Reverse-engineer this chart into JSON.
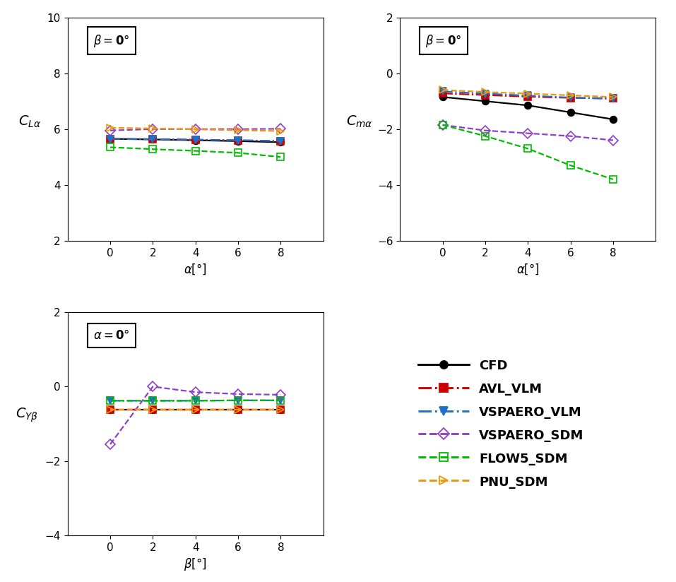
{
  "alpha_x": [
    0,
    2,
    4,
    6,
    8
  ],
  "beta_x": [
    0,
    2,
    4,
    6,
    8
  ],
  "CLa_CFD": [
    5.65,
    5.63,
    5.6,
    5.57,
    5.53
  ],
  "CLa_AVL": [
    5.65,
    5.64,
    5.62,
    5.6,
    5.57
  ],
  "CLa_VSPAERO_VLM": [
    5.65,
    5.64,
    5.62,
    5.6,
    5.57
  ],
  "CLa_VSPAERO_SDM": [
    5.95,
    6.0,
    6.0,
    6.0,
    6.01
  ],
  "CLa_FLOW5": [
    5.35,
    5.28,
    5.22,
    5.15,
    5.0
  ],
  "CLa_PNU": [
    6.05,
    6.02,
    5.99,
    5.96,
    5.93
  ],
  "Cma_CFD": [
    -0.85,
    -1.0,
    -1.15,
    -1.4,
    -1.65
  ],
  "Cma_AVL": [
    -0.72,
    -0.78,
    -0.84,
    -0.88,
    -0.9
  ],
  "Cma_VSPAERO_VLM": [
    -0.65,
    -0.73,
    -0.8,
    -0.87,
    -0.92
  ],
  "Cma_VSPAERO_SDM": [
    -1.85,
    -2.05,
    -2.15,
    -2.25,
    -2.4
  ],
  "Cma_FLOW5": [
    -1.85,
    -2.25,
    -2.7,
    -3.3,
    -3.8
  ],
  "Cma_PNU": [
    -0.6,
    -0.67,
    -0.73,
    -0.79,
    -0.85
  ],
  "CYb_CFD": [
    -0.62,
    -0.62,
    -0.62,
    -0.62,
    -0.62
  ],
  "CYb_AVL": [
    -0.62,
    -0.62,
    -0.62,
    -0.62,
    -0.62
  ],
  "CYb_VSPAERO_VLM": [
    -0.38,
    -0.38,
    -0.38,
    -0.37,
    -0.37
  ],
  "CYb_VSPAERO_SDM": [
    -1.55,
    0.0,
    -0.15,
    -0.2,
    -0.22
  ],
  "CYb_FLOW5": [
    -0.38,
    -0.38,
    -0.38,
    -0.37,
    -0.37
  ],
  "CYb_PNU": [
    -0.62,
    -0.62,
    -0.62,
    -0.62,
    -0.62
  ],
  "colors": {
    "CFD": "#000000",
    "AVL_VLM": "#cc0000",
    "VSPAERO_VLM": "#1e6fc8",
    "VSPAERO_SDM": "#9040c8",
    "FLOW5_SDM": "#00bb00",
    "PNU_SDM": "#f0960a"
  },
  "linestyles": {
    "CFD": "-",
    "AVL_VLM": "-.",
    "VSPAERO_VLM": "-.",
    "VSPAERO_SDM": "--",
    "FLOW5_SDM": "--",
    "PNU_SDM": "--"
  },
  "markers": {
    "CFD": "o",
    "AVL_VLM": "s",
    "VSPAERO_VLM": "v",
    "VSPAERO_SDM": "D",
    "FLOW5_SDM": "s",
    "PNU_SDM": ">"
  },
  "markerfilled": {
    "CFD": true,
    "AVL_VLM": true,
    "VSPAERO_VLM": true,
    "VSPAERO_SDM": false,
    "FLOW5_SDM": false,
    "PNU_SDM": false
  },
  "legend_labels": [
    "CFD",
    "AVL_VLM",
    "VSPAERO_VLM",
    "VSPAERO_SDM",
    "FLOW5_SDM",
    "PNU_SDM"
  ]
}
